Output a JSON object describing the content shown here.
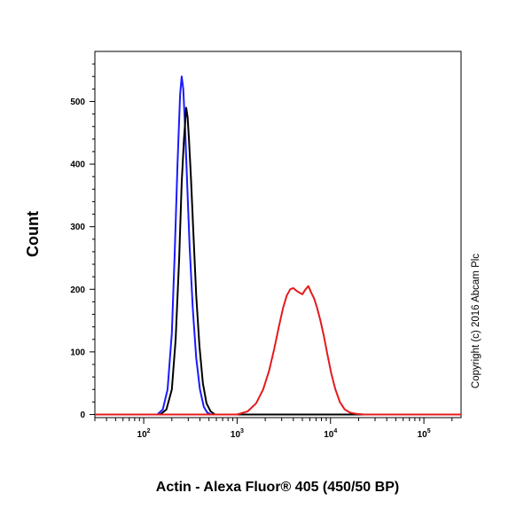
{
  "chart_data": {
    "type": "area",
    "title": "",
    "xlabel": "Actin - Alexa Fluor® 405 (450/50 BP)",
    "ylabel": "Count",
    "x_scale": "log",
    "xlim": [
      30,
      250000
    ],
    "ylim": [
      -5,
      580
    ],
    "x_ticks": [
      {
        "value": 100,
        "base": "10",
        "exp": "2"
      },
      {
        "value": 1000,
        "base": "10",
        "exp": "3"
      },
      {
        "value": 10000,
        "base": "10",
        "exp": "4"
      },
      {
        "value": 100000,
        "base": "10",
        "exp": "5"
      }
    ],
    "y_ticks": [
      0,
      100,
      200,
      300,
      400,
      500
    ],
    "grid": false,
    "legend": "none",
    "annotation": "Copyright (c) 2016 Abcam Plc",
    "series": [
      {
        "color": "#1a1aff",
        "x": [
          30,
          140,
          160,
          180,
          200,
          215,
          230,
          245,
          255,
          265,
          275,
          290,
          310,
          335,
          365,
          400,
          440,
          480,
          530,
          250000
        ],
        "y": [
          0,
          0,
          8,
          40,
          130,
          260,
          400,
          510,
          540,
          520,
          470,
          380,
          270,
          170,
          90,
          40,
          12,
          3,
          0,
          0
        ]
      },
      {
        "color": "#000000",
        "x": [
          30,
          150,
          175,
          200,
          220,
          240,
          255,
          270,
          285,
          295,
          305,
          320,
          340,
          365,
          395,
          430,
          470,
          520,
          580,
          250000
        ],
        "y": [
          0,
          0,
          8,
          40,
          120,
          250,
          370,
          440,
          490,
          475,
          440,
          380,
          290,
          190,
          110,
          50,
          18,
          5,
          0,
          0
        ]
      },
      {
        "color": "#e41a1c",
        "x": [
          30,
          1000,
          1300,
          1600,
          1900,
          2200,
          2500,
          2800,
          3100,
          3400,
          3700,
          4000,
          4300,
          4600,
          5000,
          5400,
          5800,
          6200,
          6700,
          7200,
          7800,
          8500,
          9300,
          10200,
          11300,
          12600,
          14200,
          16200,
          19000,
          23000,
          28000,
          250000
        ],
        "y": [
          0,
          0,
          5,
          18,
          40,
          70,
          105,
          140,
          170,
          190,
          200,
          202,
          198,
          195,
          192,
          200,
          205,
          195,
          185,
          170,
          150,
          125,
          95,
          65,
          40,
          20,
          8,
          3,
          1,
          0,
          0,
          0
        ]
      }
    ]
  }
}
